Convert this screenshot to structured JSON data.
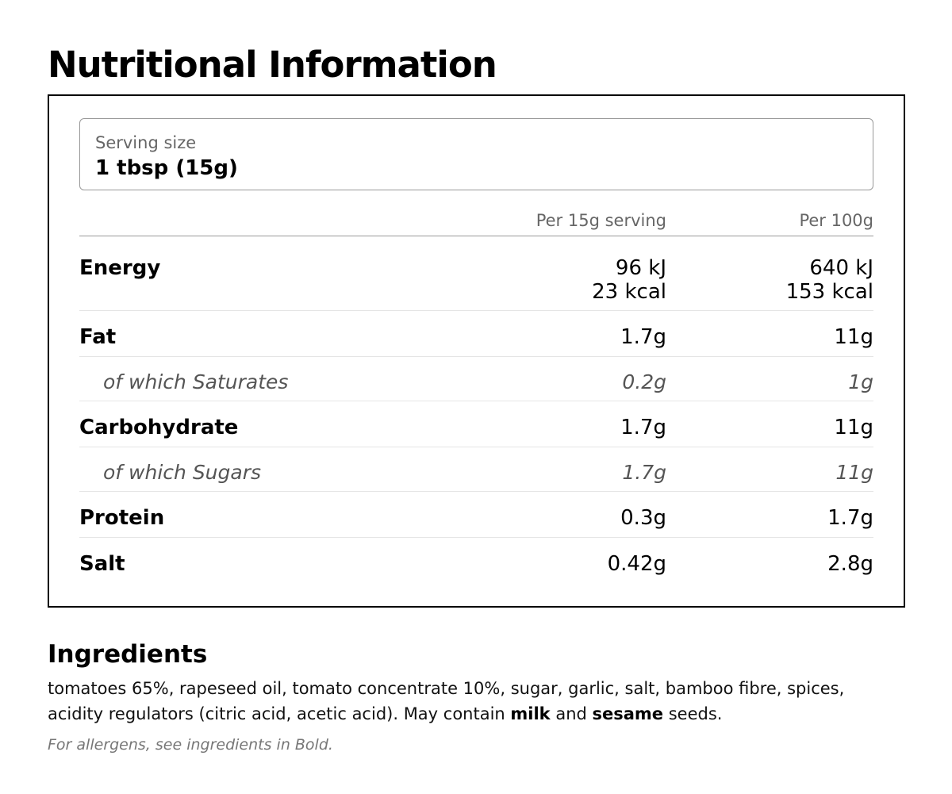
{
  "title": "Nutritional Information",
  "serving": {
    "label": "Serving size",
    "value": "1 tbsp (15g)"
  },
  "columns": {
    "per_serving": "Per 15g serving",
    "per_100g": "Per 100g"
  },
  "rows": [
    {
      "label": "Energy",
      "per_serving": [
        "96 kJ",
        "23 kcal"
      ],
      "per_100g": [
        "640 kJ",
        "153 kcal"
      ]
    },
    {
      "label": "Fat",
      "per_serving": "1.7g",
      "per_100g": "11g"
    },
    {
      "label": "of which Saturates",
      "per_serving": "0.2g",
      "per_100g": "1g",
      "sub": true
    },
    {
      "label": "Carbohydrate",
      "per_serving": "1.7g",
      "per_100g": "11g"
    },
    {
      "label": "of which Sugars",
      "per_serving": "1.7g",
      "per_100g": "11g",
      "sub": true
    },
    {
      "label": "Protein",
      "per_serving": "0.3g",
      "per_100g": "1.7g"
    },
    {
      "label": "Salt",
      "per_serving": "0.42g",
      "per_100g": "2.8g"
    }
  ],
  "ingredients": {
    "title": "Ingredients",
    "text_before": "tomatoes 65%, rapeseed oil, tomato concentrate 10%, sugar, garlic, salt, bamboo fibre, spices, acidity regulators (citric acid, acetic acid). May contain ",
    "allergen_1": "milk",
    "text_mid": " and ",
    "allergen_2": "sesame",
    "text_after": " seeds.",
    "note": "For allergens, see ingredients in Bold."
  }
}
